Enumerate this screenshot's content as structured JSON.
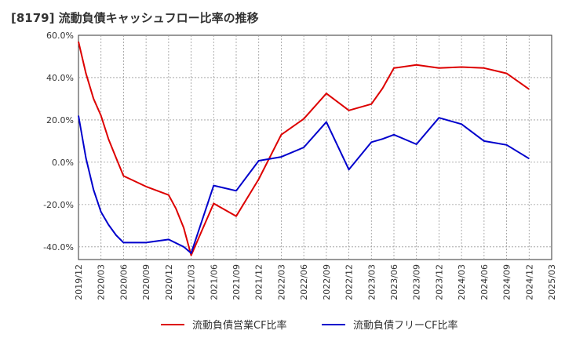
{
  "title": "[8179]  流動負債キャッシュフロー比率の推移",
  "chart_data": {
    "type": "line",
    "title": "[8179]  流動負債キャッシュフロー比率の推移",
    "xlabel": "",
    "ylabel": "",
    "ylim": [
      -46,
      60
    ],
    "yticks": [
      60,
      40,
      20,
      0,
      -20,
      -40
    ],
    "ytick_labels": [
      "60.0%",
      "40.0%",
      "20.0%",
      "0.0%",
      "-20.0%",
      "-40.0%"
    ],
    "xticks": [
      "2019/12",
      "2020/03",
      "2020/06",
      "2020/09",
      "2020/12",
      "2021/03",
      "2021/06",
      "2021/09",
      "2021/12",
      "2022/03",
      "2022/06",
      "2022/09",
      "2022/12",
      "2023/03",
      "2023/06",
      "2023/09",
      "2023/12",
      "2024/03",
      "2024/06",
      "2024/09",
      "2024/12",
      "2025/03"
    ],
    "grid": true,
    "legend_position": "bottom",
    "series": [
      {
        "name": "流動負債営業CF比率",
        "color": "#dd0000",
        "points": [
          [
            0,
            57
          ],
          [
            0.33,
            42
          ],
          [
            0.67,
            30
          ],
          [
            1,
            22
          ],
          [
            1.33,
            11
          ],
          [
            1.67,
            2
          ],
          [
            2,
            -6.5
          ],
          [
            3,
            -11.5
          ],
          [
            4,
            -15.5
          ],
          [
            4.33,
            -22
          ],
          [
            4.67,
            -31
          ],
          [
            5,
            -44
          ],
          [
            6,
            -19.5
          ],
          [
            7,
            -25.5
          ],
          [
            8,
            -8
          ],
          [
            9,
            13
          ],
          [
            10,
            20.5
          ],
          [
            11,
            32.5
          ],
          [
            12,
            24.5
          ],
          [
            13,
            27.5
          ],
          [
            13.5,
            35
          ],
          [
            14,
            44.5
          ],
          [
            15,
            46
          ],
          [
            16,
            44.5
          ],
          [
            17,
            45
          ],
          [
            18,
            44.5
          ],
          [
            19,
            42
          ],
          [
            20,
            34.5
          ]
        ]
      },
      {
        "name": "流動負債フリーCF比率",
        "color": "#0000cc",
        "points": [
          [
            0,
            22
          ],
          [
            0.33,
            2
          ],
          [
            0.67,
            -13
          ],
          [
            1,
            -23.5
          ],
          [
            1.33,
            -29.5
          ],
          [
            1.67,
            -34.5
          ],
          [
            2,
            -38
          ],
          [
            3,
            -38
          ],
          [
            4,
            -36.5
          ],
          [
            4.67,
            -40
          ],
          [
            5,
            -43
          ],
          [
            6,
            -11
          ],
          [
            7,
            -13.5
          ],
          [
            8,
            0.7
          ],
          [
            9,
            2.5
          ],
          [
            10,
            7
          ],
          [
            11,
            19
          ],
          [
            12,
            -3.5
          ],
          [
            13,
            9.5
          ],
          [
            13.5,
            11
          ],
          [
            14,
            13
          ],
          [
            15,
            8.5
          ],
          [
            16,
            21
          ],
          [
            17,
            18
          ],
          [
            18,
            10
          ],
          [
            19,
            8.2
          ],
          [
            20,
            1.7
          ]
        ]
      }
    ]
  }
}
